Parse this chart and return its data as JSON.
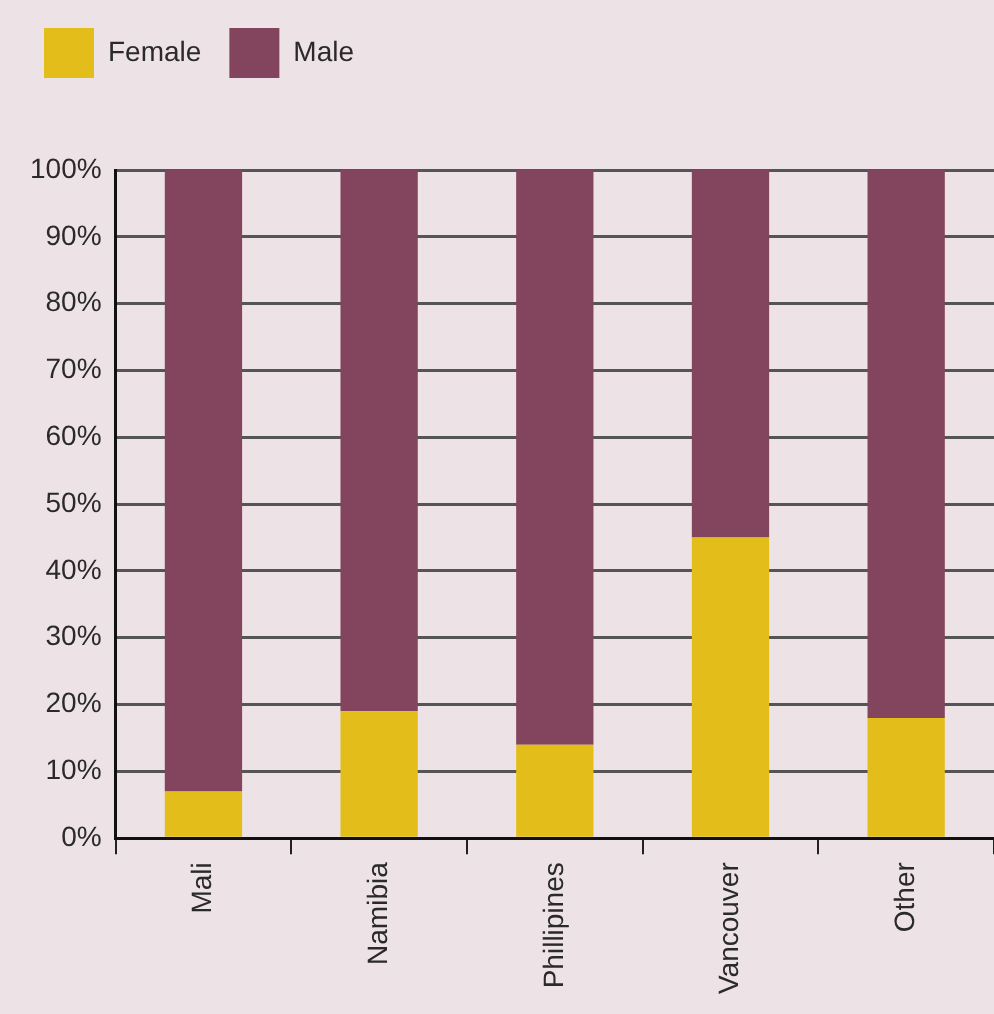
{
  "chart_data": {
    "type": "bar",
    "categories": [
      "Mali",
      "Namibia",
      "Phillipines",
      "Vancouver",
      "Other"
    ],
    "series": [
      {
        "name": "Female",
        "color": "#e3be1a",
        "values": [
          7,
          19,
          14,
          45,
          18
        ]
      },
      {
        "name": "Male",
        "color": "#83445d",
        "values": [
          93,
          81,
          86,
          55,
          82
        ]
      }
    ],
    "stacked": true,
    "ylim": [
      0,
      100
    ],
    "yticks": [
      {
        "value": 0,
        "label": "0%"
      },
      {
        "value": 10,
        "label": "10%"
      },
      {
        "value": 20,
        "label": "20%"
      },
      {
        "value": 30,
        "label": "30%"
      },
      {
        "value": 40,
        "label": "40%"
      },
      {
        "value": 50,
        "label": "50%"
      },
      {
        "value": 60,
        "label": "60%"
      },
      {
        "value": 70,
        "label": "70%"
      },
      {
        "value": 80,
        "label": "80%"
      },
      {
        "value": 90,
        "label": "90%"
      },
      {
        "value": 100,
        "label": "100%"
      }
    ],
    "grid": "y",
    "legend": "top left"
  }
}
